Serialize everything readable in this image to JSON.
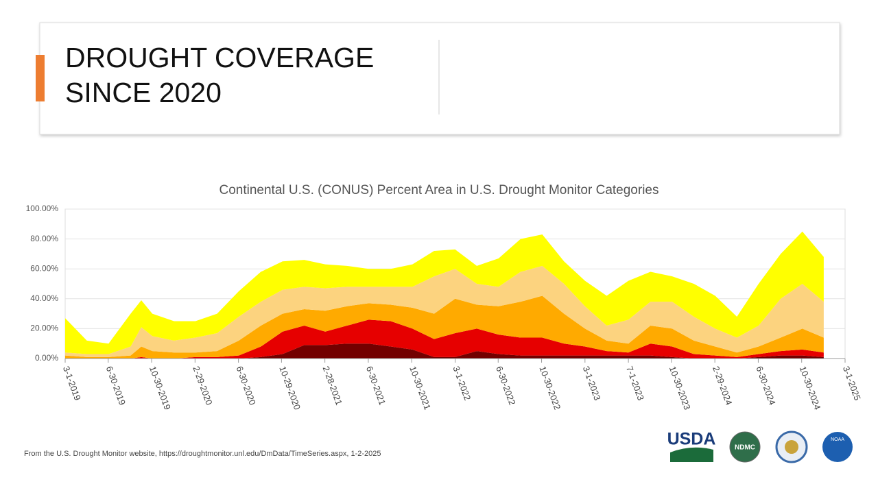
{
  "slide": {
    "title_lines": [
      "DROUGHT COVERAGE",
      "SINCE 2020"
    ],
    "footnote": "From the U.S. Drought Monitor website, https://droughtmonitor.unl.edu/DmData/TimeSeries.aspx, 1-2-2025",
    "logos": [
      "USDA",
      "NDMC",
      "NOAA"
    ]
  },
  "chart_data": {
    "type": "stacked_area",
    "title": "Continental U.S. (CONUS) Percent Area in U.S. Drought Monitor Categories",
    "x": [
      "3-1-2019",
      "5-1-2019",
      "7-1-2019",
      "9-1-2019",
      "10-1-2019",
      "11-1-2019",
      "1-1-2020",
      "3-1-2020",
      "5-1-2020",
      "7-1-2020",
      "9-1-2020",
      "11-1-2020",
      "1-1-2021",
      "3-1-2021",
      "5-1-2021",
      "7-1-2021",
      "9-1-2021",
      "11-1-2021",
      "1-1-2022",
      "3-1-2022",
      "5-1-2022",
      "7-1-2022",
      "9-1-2022",
      "11-1-2022",
      "1-1-2023",
      "3-1-2023",
      "5-1-2023",
      "7-1-2023",
      "9-1-2023",
      "11-1-2023",
      "1-1-2024",
      "3-1-2024",
      "5-1-2024",
      "7-1-2024",
      "9-1-2024",
      "11-1-2024",
      "12-31-2024"
    ],
    "series": [
      {
        "color": "#730000",
        "values": [
          0,
          0,
          0,
          0,
          0,
          0,
          0,
          0,
          0,
          0,
          1,
          3,
          9,
          9,
          10,
          10,
          8,
          6,
          1,
          1,
          5,
          3,
          2,
          2,
          2,
          2,
          2,
          2,
          2,
          1,
          0,
          0,
          0,
          1,
          2,
          2,
          1
        ]
      },
      {
        "color": "#e60000",
        "values": [
          0,
          0,
          0,
          0,
          1,
          0,
          0,
          1,
          1,
          2,
          7,
          15,
          13,
          9,
          12,
          16,
          17,
          14,
          12,
          16,
          15,
          13,
          12,
          12,
          8,
          6,
          3,
          2,
          8,
          7,
          3,
          2,
          1,
          2,
          3,
          4,
          3
        ]
      },
      {
        "color": "#ffaa00",
        "values": [
          2,
          1,
          1,
          2,
          7,
          5,
          4,
          3,
          4,
          10,
          14,
          12,
          11,
          14,
          13,
          11,
          11,
          14,
          17,
          23,
          16,
          19,
          24,
          28,
          20,
          12,
          7,
          6,
          12,
          12,
          9,
          6,
          3,
          5,
          9,
          14,
          10
        ]
      },
      {
        "color": "#fcd37f",
        "values": [
          2,
          2,
          2,
          6,
          13,
          10,
          8,
          10,
          12,
          16,
          16,
          16,
          15,
          15,
          13,
          11,
          12,
          14,
          25,
          20,
          14,
          13,
          20,
          20,
          20,
          15,
          10,
          16,
          16,
          18,
          16,
          12,
          10,
          14,
          26,
          30,
          24
        ]
      },
      {
        "color": "#ffff00",
        "values": [
          23,
          9,
          7,
          22,
          18,
          15,
          13,
          11,
          13,
          17,
          20,
          19,
          18,
          16,
          14,
          12,
          12,
          15,
          17,
          13,
          12,
          19,
          22,
          21,
          15,
          17,
          20,
          26,
          20,
          17,
          22,
          22,
          14,
          28,
          30,
          35,
          30
        ]
      }
    ],
    "xlim": [
      "3-1-2019",
      "3-1-2025"
    ],
    "xticks": [
      "3-1-2019",
      "6-30-2019",
      "10-30-2019",
      "2-29-2020",
      "6-30-2020",
      "10-29-2020",
      "2-28-2021",
      "6-30-2021",
      "10-30-2021",
      "3-1-2022",
      "6-30-2022",
      "10-30-2022",
      "3-1-2023",
      "7-1-2023",
      "10-30-2023",
      "2-29-2024",
      "6-30-2024",
      "10-30-2024",
      "3-1-2025"
    ],
    "ylim": [
      0,
      100
    ],
    "yticks": [
      {
        "value": 0,
        "label": "0.00%"
      },
      {
        "value": 20,
        "label": "20.00%"
      },
      {
        "value": 40,
        "label": "40.00%"
      },
      {
        "value": 60,
        "label": "60.00%"
      },
      {
        "value": 80,
        "label": "80.00%"
      },
      {
        "value": 100,
        "label": "100.00%"
      }
    ],
    "grid": true
  }
}
